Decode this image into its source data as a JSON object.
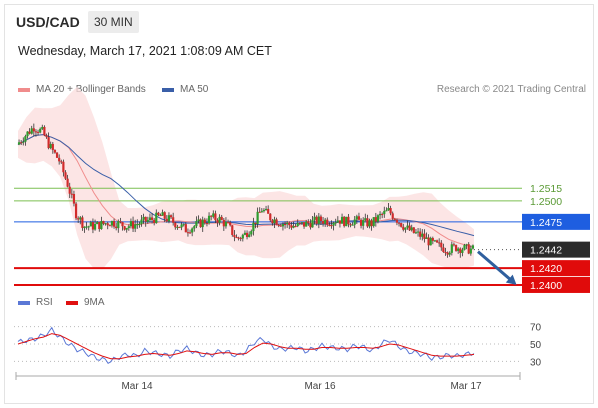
{
  "header": {
    "symbol": "USD/CAD",
    "timeframe": "30 MIN",
    "datetime": "Wednesday, March 17, 2021 1:08:09 AM CET",
    "credit": "Research © 2021 Trading Central"
  },
  "legend": {
    "ma_bb": {
      "label": "MA 20 + Bollinger Bands",
      "color": "#f08c8c"
    },
    "ma50": {
      "label": "MA 50",
      "color": "#3a5fa8"
    },
    "rsi": {
      "label": "RSI",
      "color": "#5b78d6"
    },
    "rsi_ma": {
      "label": "9MA",
      "color": "#e01010"
    }
  },
  "levels": [
    {
      "value": "1.2515",
      "type": "resistance-minor",
      "color": "#7cbf52"
    },
    {
      "value": "1.2500",
      "type": "resistance-minor",
      "color": "#7cbf52"
    },
    {
      "value": "1.2475",
      "type": "pivot",
      "color": "#1e5ee0"
    },
    {
      "value": "1.2442",
      "type": "last-price",
      "color": "#2b2b2b"
    },
    {
      "value": "1.2420",
      "type": "support",
      "color": "#e00b0b"
    },
    {
      "value": "1.2400",
      "type": "support",
      "color": "#e00b0b"
    }
  ],
  "chart_data": {
    "type": "candlestick",
    "x_tick_labels": [
      "Mar 14",
      "Mar 16",
      "Mar 17"
    ],
    "price_axis_labels": [
      "1.2515",
      "1.2500",
      "1.2475",
      "1.2442",
      "1.2420",
      "1.2400"
    ],
    "price_ylim": [
      1.2394,
      1.2608
    ],
    "close_path": [
      1.2567,
      1.2578,
      1.2588,
      1.2582,
      1.2563,
      1.2548,
      1.252,
      1.2485,
      1.247,
      1.247,
      1.2472,
      1.2475,
      1.2473,
      1.247,
      1.2472,
      1.2475,
      1.2478,
      1.2482,
      1.2478,
      1.2472,
      1.2466,
      1.247,
      1.2475,
      1.248,
      1.2478,
      1.247,
      1.2455,
      1.246,
      1.2472,
      1.249,
      1.248,
      1.2475,
      1.2472,
      1.247,
      1.2472,
      1.2475,
      1.2477,
      1.2476,
      1.2478,
      1.2475,
      1.2477,
      1.2474,
      1.2473,
      1.2482,
      1.2488,
      1.2478,
      1.2468,
      1.2462,
      1.2458,
      1.245,
      1.2446,
      1.2442,
      1.2445,
      1.2443,
      1.2442
    ],
    "projection": {
      "from": 1.2442,
      "to": 1.24,
      "direction": "down"
    },
    "rsi_axis_labels": [
      "70",
      "50",
      "30"
    ],
    "rsi_ylim": [
      20,
      80
    ],
    "rsi": [
      52,
      54,
      56,
      60,
      66,
      58,
      50,
      44,
      40,
      35,
      32,
      30,
      35,
      38,
      36,
      42,
      40,
      38,
      36,
      42,
      45,
      40,
      37,
      38,
      42,
      40,
      36,
      42,
      52,
      56,
      48,
      44,
      45,
      46,
      42,
      44,
      48,
      46,
      45,
      44,
      48,
      46,
      42,
      50,
      55,
      48,
      42,
      40,
      38,
      34,
      35,
      37,
      36,
      38,
      39
    ],
    "rsi_ma": [
      50,
      53,
      56,
      58,
      62,
      60,
      55,
      50,
      45,
      40,
      36,
      33,
      33,
      35,
      36,
      38,
      39,
      38,
      37,
      39,
      42,
      41,
      39,
      38,
      40,
      40,
      38,
      39,
      46,
      51,
      50,
      47,
      45,
      45,
      44,
      44,
      46,
      46,
      45,
      45,
      46,
      46,
      45,
      47,
      50,
      49,
      46,
      43,
      40,
      37,
      36,
      36,
      36,
      37,
      38
    ]
  }
}
